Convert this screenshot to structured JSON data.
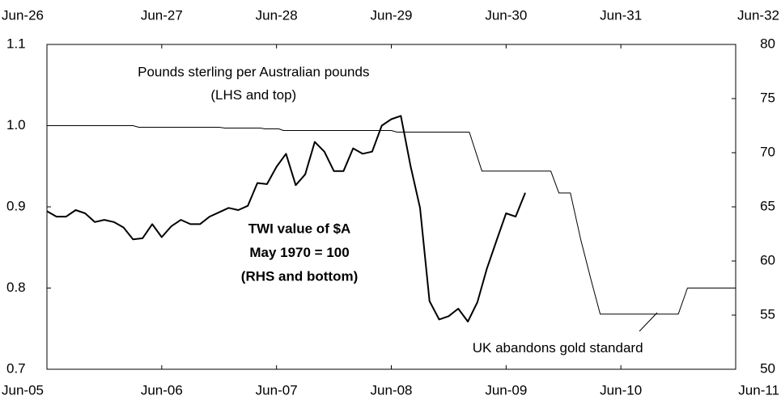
{
  "chart_data": {
    "type": "line",
    "annotations": [
      {
        "text": "Pounds sterling per Australian pounds",
        "x": 1928.3,
        "y": 1.065
      },
      {
        "text": "(LHS and top)",
        "x": 1928.3,
        "y": 1.037
      },
      {
        "text": "TWI value of $A",
        "x": 2007.7,
        "y": 62.9,
        "bold": true
      },
      {
        "text": "May 1970 = 100",
        "x": 2007.7,
        "y": 60.7,
        "bold": true
      },
      {
        "text": "(RHS and bottom)",
        "x": 2007.7,
        "y": 58.5,
        "bold": true
      },
      {
        "text": "UK abandons gold standard",
        "x": 2009.95,
        "y": 51.9
      }
    ],
    "xlim": [
      2005.5,
      2011.5
    ],
    "xticks": [
      {
        "value": 2005.5,
        "label": "Jun-05"
      },
      {
        "value": 2006.5,
        "label": "Jun-06"
      },
      {
        "value": 2007.5,
        "label": "Jun-07"
      },
      {
        "value": 2008.5,
        "label": "Jun-08"
      },
      {
        "value": 2009.5,
        "label": "Jun-09"
      },
      {
        "value": 2010.5,
        "label": "Jun-10"
      },
      {
        "value": 2011.5,
        "label": "Jun-11"
      }
    ],
    "x2lim": [
      1926.5,
      1932.5
    ],
    "x2ticks": [
      {
        "value": 1926.5,
        "label": "Jun-26"
      },
      {
        "value": 1927.5,
        "label": "Jun-27"
      },
      {
        "value": 1928.5,
        "label": "Jun-28"
      },
      {
        "value": 1929.5,
        "label": "Jun-29"
      },
      {
        "value": 1930.5,
        "label": "Jun-30"
      },
      {
        "value": 1931.5,
        "label": "Jun-31"
      },
      {
        "value": 1932.5,
        "label": "Jun-32"
      }
    ],
    "ylim": [
      0.7,
      1.1
    ],
    "yticks": [
      0.7,
      0.8,
      0.9,
      {
        "value": 1,
        "label": "1.0"
      },
      1.1
    ],
    "y2lim": [
      50,
      80
    ],
    "y2ticks": [
      50,
      55,
      60,
      65,
      70,
      75,
      80
    ],
    "series": [
      {
        "axis": "y",
        "xaxis": "x2",
        "color": "#000000",
        "x": [
          1926.5,
          1927.25,
          1927.3,
          1928.0,
          1928.05,
          1928.36,
          1928.4,
          1928.52,
          1928.56,
          1929.5,
          1929.55,
          1930.18,
          1930.29,
          1930.89,
          1930.96,
          1931.06,
          1931.15,
          1931.24,
          1931.32,
          1932.0,
          1932.08,
          1932.5
        ],
        "values": [
          1.0,
          1.0,
          0.998,
          0.998,
          0.997,
          0.997,
          0.996,
          0.996,
          0.994,
          0.994,
          0.992,
          0.992,
          0.944,
          0.944,
          0.917,
          0.917,
          0.86,
          0.81,
          0.768,
          0.768,
          0.8,
          0.8
        ]
      },
      {
        "axis": "y2",
        "color": "#000000",
        "x": [
          2005.5,
          2005.583,
          2005.667,
          2005.75,
          2005.833,
          2005.917,
          2006.0,
          2006.083,
          2006.167,
          2006.25,
          2006.333,
          2006.417,
          2006.5,
          2006.583,
          2006.667,
          2006.75,
          2006.833,
          2006.917,
          2007.0,
          2007.083,
          2007.167,
          2007.25,
          2007.333,
          2007.417,
          2007.5,
          2007.583,
          2007.667,
          2007.75,
          2007.833,
          2007.917,
          2008.0,
          2008.083,
          2008.167,
          2008.25,
          2008.333,
          2008.417,
          2008.5,
          2008.583,
          2008.667,
          2008.75,
          2008.833,
          2008.917,
          2009.0,
          2009.083,
          2009.167,
          2009.25,
          2009.333,
          2009.417,
          2009.5,
          2009.583,
          2009.667
        ],
        "values": [
          64.6,
          64.1,
          64.1,
          64.7,
          64.4,
          63.6,
          63.8,
          63.6,
          63.1,
          62.0,
          62.1,
          63.4,
          62.2,
          63.2,
          63.8,
          63.4,
          63.4,
          64.1,
          64.5,
          64.9,
          64.7,
          65.1,
          67.2,
          67.1,
          68.7,
          69.9,
          67.0,
          68.0,
          71.0,
          70.1,
          68.3,
          68.3,
          70.4,
          69.9,
          70.1,
          72.5,
          73.1,
          73.4,
          68.8,
          64.9,
          56.3,
          54.6,
          54.9,
          55.6,
          54.4,
          56.2,
          59.3,
          61.9,
          64.4,
          64.1,
          66.3
        ]
      }
    ]
  }
}
